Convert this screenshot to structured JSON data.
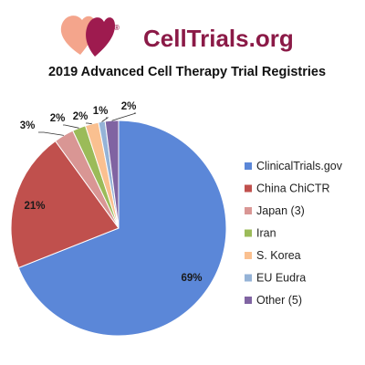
{
  "brand": {
    "name": "CellTrials.org",
    "registered_mark": "®",
    "logo_icon": "two-hearts-logo-icon",
    "name_color": "#8B1A47",
    "logo_left_color": "#F4A58C",
    "logo_right_color": "#9E1B4F"
  },
  "chart_data": {
    "type": "pie",
    "title": "2019 Advanced Cell Therapy Trial Registries",
    "legend_position": "right",
    "slices": [
      {
        "label": "ClinicalTrials.gov",
        "value": 69,
        "display": "69%",
        "color": "#5B87D8"
      },
      {
        "label": "China ChiCTR",
        "value": 21,
        "display": "21%",
        "color": "#C0504D"
      },
      {
        "label": "Japan (3)",
        "value": 3,
        "display": "3%",
        "color": "#D99694"
      },
      {
        "label": "Iran",
        "value": 2,
        "display": "2%",
        "color": "#9BBB59"
      },
      {
        "label": "S. Korea",
        "value": 2,
        "display": "2%",
        "color": "#FAC090"
      },
      {
        "label": "EU Eudra",
        "value": 1,
        "display": "1%",
        "color": "#95B3D7"
      },
      {
        "label": "Other (5)",
        "value": 2,
        "display": "2%",
        "color": "#8064A2"
      }
    ]
  }
}
